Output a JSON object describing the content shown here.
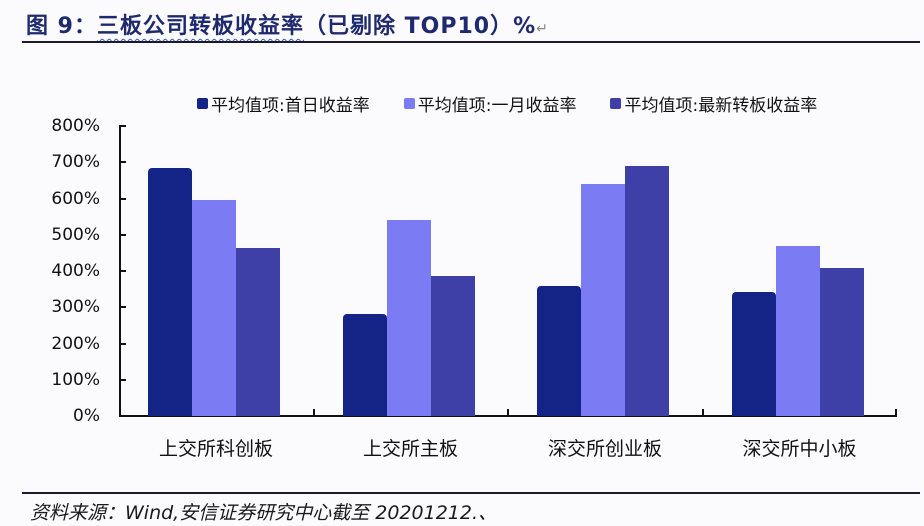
{
  "header": {
    "prefix": "图 9：",
    "title_underlined": "三板公司转板收益率",
    "title_rest": "（已剔除 TOP10）%",
    "return_mark": "↵"
  },
  "footer": {
    "source": "资料来源：Wind,安信证券研究中心截至 20201212.、"
  },
  "colors": {
    "series_0": "#132386",
    "series_1": "#7B7BF3",
    "series_2": "#3F3FA8"
  },
  "chart_data": {
    "type": "bar",
    "title": "三板公司转板收益率（已剔除 TOP10）%",
    "xlabel": "",
    "ylabel": "",
    "ylim": [
      0,
      800
    ],
    "y_ticks": [
      "0%",
      "100%",
      "200%",
      "300%",
      "400%",
      "500%",
      "600%",
      "700%",
      "800%"
    ],
    "grid": false,
    "legend_position": "top",
    "categories": [
      "上交所科创板",
      "上交所主板",
      "深交所创业板",
      "深交所中小板"
    ],
    "series": [
      {
        "name": "平均值项:首日收益率",
        "values": [
          684,
          281,
          359,
          342
        ]
      },
      {
        "name": "平均值项:一月收益率",
        "values": [
          596,
          541,
          640,
          469
        ]
      },
      {
        "name": "平均值项:最新转板收益率",
        "values": [
          463,
          386,
          690,
          408
        ]
      }
    ],
    "unit": "%"
  }
}
